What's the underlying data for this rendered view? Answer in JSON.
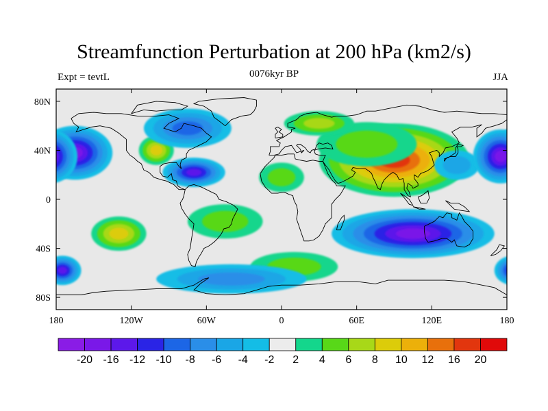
{
  "title": "Streamfunction Perturbation at 200 hPa (km2/s)",
  "subtitle_left": "Expt = tevtL",
  "subtitle_center": "0076kyr BP",
  "subtitle_right": "JJA",
  "map": {
    "projection": "cylindrical-equidistant",
    "lon_range": [
      -180,
      180
    ],
    "lat_range": [
      -90,
      90
    ],
    "x_ticks": [
      {
        "lon": -180,
        "label": "180"
      },
      {
        "lon": -120,
        "label": "120W"
      },
      {
        "lon": -60,
        "label": "60W"
      },
      {
        "lon": 0,
        "label": "0"
      },
      {
        "lon": 60,
        "label": "60E"
      },
      {
        "lon": 120,
        "label": "120E"
      },
      {
        "lon": 180,
        "label": "180"
      }
    ],
    "y_ticks": [
      {
        "lat": 80,
        "label": "80N"
      },
      {
        "lat": 40,
        "label": "40N"
      },
      {
        "lat": 0,
        "label": "0"
      },
      {
        "lat": -40,
        "label": "40S"
      },
      {
        "lat": -80,
        "label": "80S"
      }
    ],
    "background_color": "#e8e8e8",
    "coastline_color": "#000000"
  },
  "colorbar": {
    "colors": [
      "#8a1ce6",
      "#7a18e8",
      "#5c18ea",
      "#2a24e6",
      "#1c66e6",
      "#2a8ee8",
      "#1aa6e6",
      "#14bde6",
      "#ececec",
      "#14d68c",
      "#58d818",
      "#a8d818",
      "#dccc0a",
      "#ecb00a",
      "#e8700c",
      "#e2360e",
      "#e00a0a"
    ],
    "labels": [
      "-20",
      "-16",
      "-12",
      "-10",
      "-8",
      "-6",
      "-4",
      "-2",
      "2",
      "4",
      "6",
      "8",
      "10",
      "12",
      "16",
      "20"
    ]
  },
  "field_blobs": [
    {
      "lon": 90,
      "lat": 32,
      "rx": 60,
      "ry": 30,
      "level": 7
    },
    {
      "lon": 68,
      "lat": 45,
      "rx": 40,
      "ry": 18,
      "level": 2
    },
    {
      "lon": 30,
      "lat": 62,
      "rx": 28,
      "ry": 10,
      "level": 3
    },
    {
      "lon": -100,
      "lat": 40,
      "rx": 14,
      "ry": 12,
      "level": 4
    },
    {
      "lon": -130,
      "lat": -28,
      "rx": 22,
      "ry": 14,
      "level": 4
    },
    {
      "lon": -45,
      "lat": -18,
      "rx": 30,
      "ry": 14,
      "level": 2
    },
    {
      "lon": 0,
      "lat": 18,
      "rx": 18,
      "ry": 12,
      "level": 2
    },
    {
      "lon": 10,
      "lat": -55,
      "rx": 35,
      "ry": 12,
      "level": 2
    },
    {
      "lon": 140,
      "lat": 28,
      "rx": 18,
      "ry": 12,
      "level": -2
    },
    {
      "lon": -165,
      "lat": 38,
      "rx": 30,
      "ry": 22,
      "level": -7
    },
    {
      "lon": 175,
      "lat": 35,
      "rx": 22,
      "ry": 22,
      "level": -7
    },
    {
      "lon": -70,
      "lat": 22,
      "rx": 25,
      "ry": 12,
      "level": -6
    },
    {
      "lon": -75,
      "lat": 58,
      "rx": 35,
      "ry": 16,
      "level": -4
    },
    {
      "lon": 105,
      "lat": -28,
      "rx": 65,
      "ry": 20,
      "level": -7
    },
    {
      "lon": -40,
      "lat": -65,
      "rx": 60,
      "ry": 12,
      "level": -3
    },
    {
      "lon": -175,
      "lat": -58,
      "rx": 15,
      "ry": 12,
      "level": -6
    }
  ]
}
